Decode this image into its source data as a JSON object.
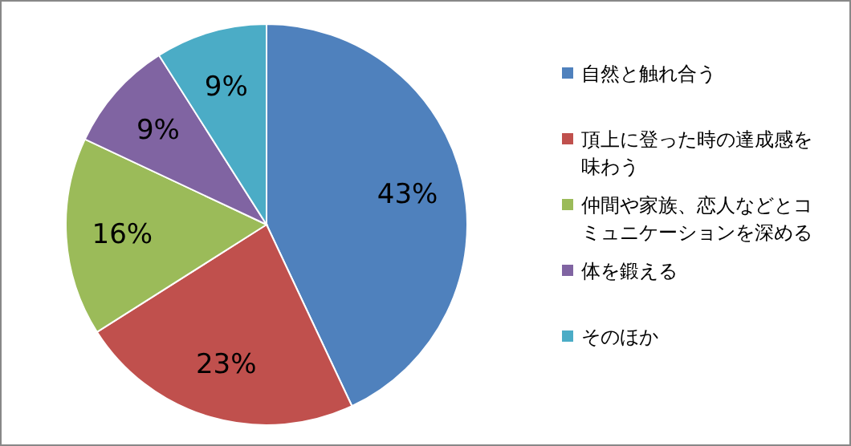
{
  "chart_data": {
    "type": "pie",
    "categories": [
      "自然と触れ合う",
      "頂上に登った時の達成感を味わう",
      "仲間や家族、恋人などとコミュニケーションを深める",
      "体を鍛える",
      "そのほか"
    ],
    "values": [
      43,
      23,
      16,
      9,
      9
    ],
    "colors": [
      "#4f81bd",
      "#c0504d",
      "#9bbb59",
      "#8064a2",
      "#4bacc6"
    ],
    "value_labels": [
      "43%",
      "23%",
      "16%",
      "9%",
      "9%"
    ],
    "legend": "right"
  }
}
